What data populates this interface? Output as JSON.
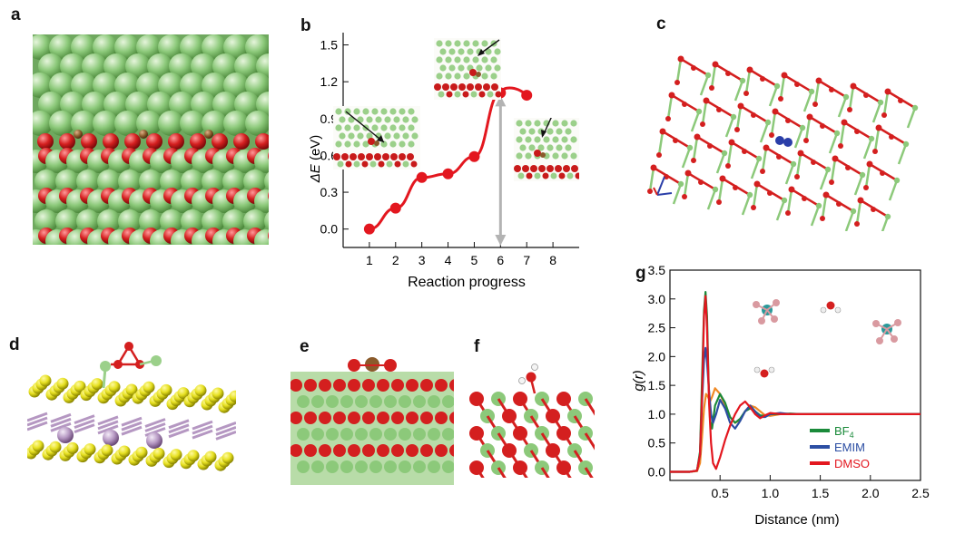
{
  "panel_labels": {
    "a": "a",
    "b": "b",
    "c": "c",
    "d": "d",
    "e": "e",
    "f": "f",
    "g": "g"
  },
  "chart_data": [
    {
      "panel": "b",
      "type": "line",
      "xlabel": "Reaction progress",
      "ylabel_symbol": "ΔE",
      "ylabel_unit": " (eV)",
      "x": [
        1,
        2,
        3,
        4,
        5,
        6,
        7
      ],
      "y": [
        0.0,
        0.17,
        0.42,
        0.45,
        0.59,
        1.11,
        1.09
      ],
      "curve_peak": [
        6.35,
        1.15
      ],
      "xticks": [
        1,
        2,
        3,
        4,
        5,
        6,
        7,
        8
      ],
      "yticks": [
        "0.0",
        "0.3",
        "0.6",
        "0.9",
        "1.2",
        "1.5"
      ],
      "xlim": [
        0,
        9
      ],
      "ylim": [
        -0.15,
        1.6
      ],
      "arrow_x": 6,
      "arrow_range": [
        -0.15,
        1.11
      ],
      "colors": {
        "line": "#e3171f",
        "arrow": "#b3b3b3"
      }
    },
    {
      "panel": "g",
      "type": "line",
      "xlabel": "Distance (nm)",
      "ylabel": "g(r)",
      "xticks": [
        "0.5",
        "1.0",
        "1.5",
        "2.0",
        "2.5"
      ],
      "yticks": [
        "0.0",
        "0.5",
        "1.0",
        "1.5",
        "2.0",
        "2.5",
        "3.0",
        "3.5"
      ],
      "xlim": [
        0,
        2.5
      ],
      "ylim": [
        -0.15,
        3.5
      ],
      "legend_position": "bottom-right",
      "series": [
        {
          "name": "BF",
          "subscript": "4",
          "color": "#1a8a3a",
          "x": [
            0,
            0.2,
            0.27,
            0.3,
            0.32,
            0.34,
            0.355,
            0.37,
            0.385,
            0.4,
            0.42,
            0.45,
            0.5,
            0.55,
            0.6,
            0.65,
            0.7,
            0.75,
            0.8,
            0.85,
            0.9,
            0.95,
            1.0,
            1.1,
            1.2,
            1.3,
            1.5,
            2.0,
            2.5
          ],
          "y": [
            0,
            0,
            0.02,
            0.35,
            1.6,
            2.8,
            3.12,
            2.7,
            1.6,
            0.9,
            0.75,
            1.15,
            1.35,
            1.2,
            0.95,
            0.85,
            0.92,
            1.05,
            1.1,
            1.05,
            0.98,
            0.97,
            1.0,
            1.0,
            1.01,
            1.0,
            1.0,
            1.0,
            1.0
          ]
        },
        {
          "name": "EMIM",
          "color": "#2c4ea3",
          "x": [
            0,
            0.2,
            0.27,
            0.3,
            0.32,
            0.34,
            0.355,
            0.37,
            0.39,
            0.41,
            0.43,
            0.46,
            0.5,
            0.55,
            0.6,
            0.65,
            0.7,
            0.75,
            0.8,
            0.85,
            0.9,
            0.95,
            1.0,
            1.1,
            1.2,
            1.3,
            1.5,
            2.0,
            2.5
          ],
          "y": [
            0,
            0,
            0.02,
            0.3,
            1.2,
            1.95,
            2.15,
            1.9,
            1.4,
            1.0,
            0.85,
            1.0,
            1.25,
            1.1,
            0.85,
            0.75,
            0.88,
            1.05,
            1.15,
            1.05,
            0.95,
            0.95,
            1.0,
            1.02,
            1.0,
            1.0,
            1.0,
            1.0,
            1.0
          ]
        },
        {
          "name": "DMSO",
          "color": "#e3171f",
          "x": [
            0,
            0.2,
            0.27,
            0.3,
            0.32,
            0.34,
            0.355,
            0.37,
            0.39,
            0.41,
            0.43,
            0.46,
            0.5,
            0.55,
            0.6,
            0.65,
            0.7,
            0.75,
            0.8,
            0.85,
            0.9,
            0.95,
            1.0,
            1.1,
            1.2,
            1.3,
            1.5,
            2.0,
            2.5
          ],
          "y": [
            0,
            0,
            0.02,
            0.3,
            1.3,
            2.7,
            3.05,
            2.5,
            1.2,
            0.5,
            0.15,
            0.05,
            0.25,
            0.55,
            0.8,
            1.0,
            1.15,
            1.22,
            1.12,
            1.0,
            0.93,
            0.98,
            1.02,
            1.0,
            1.0,
            1.0,
            1.0,
            1.0,
            1.0
          ]
        },
        {
          "name": "",
          "color": "#f08a24",
          "x": [
            0,
            0.2,
            0.27,
            0.3,
            0.32,
            0.34,
            0.36,
            0.38,
            0.4,
            0.42,
            0.45,
            0.5,
            0.55,
            0.6,
            0.65,
            0.7,
            0.75,
            0.8,
            0.85,
            0.9,
            0.95,
            1.0,
            1.1,
            1.2,
            1.3,
            1.5,
            2.0,
            2.5
          ],
          "y": [
            0,
            0,
            0.01,
            0.15,
            0.6,
            1.1,
            1.35,
            1.3,
            1.22,
            1.3,
            1.45,
            1.35,
            1.15,
            0.95,
            0.85,
            0.9,
            1.05,
            1.15,
            1.12,
            1.05,
            0.98,
            0.97,
            1.0,
            1.0,
            1.0,
            1.0,
            1.0,
            1.0
          ]
        }
      ]
    }
  ],
  "colors": {
    "green_atom": "#8cc97a",
    "red_atom": "#d41f1f",
    "yellow_atom": "#e6e020",
    "purple_atom": "#b597c2",
    "brown_atom": "#8a5a2b",
    "teal_atom": "#2a9a9a",
    "pink_atom": "#d99aa0",
    "blue_atom": "#2a3ea8"
  }
}
